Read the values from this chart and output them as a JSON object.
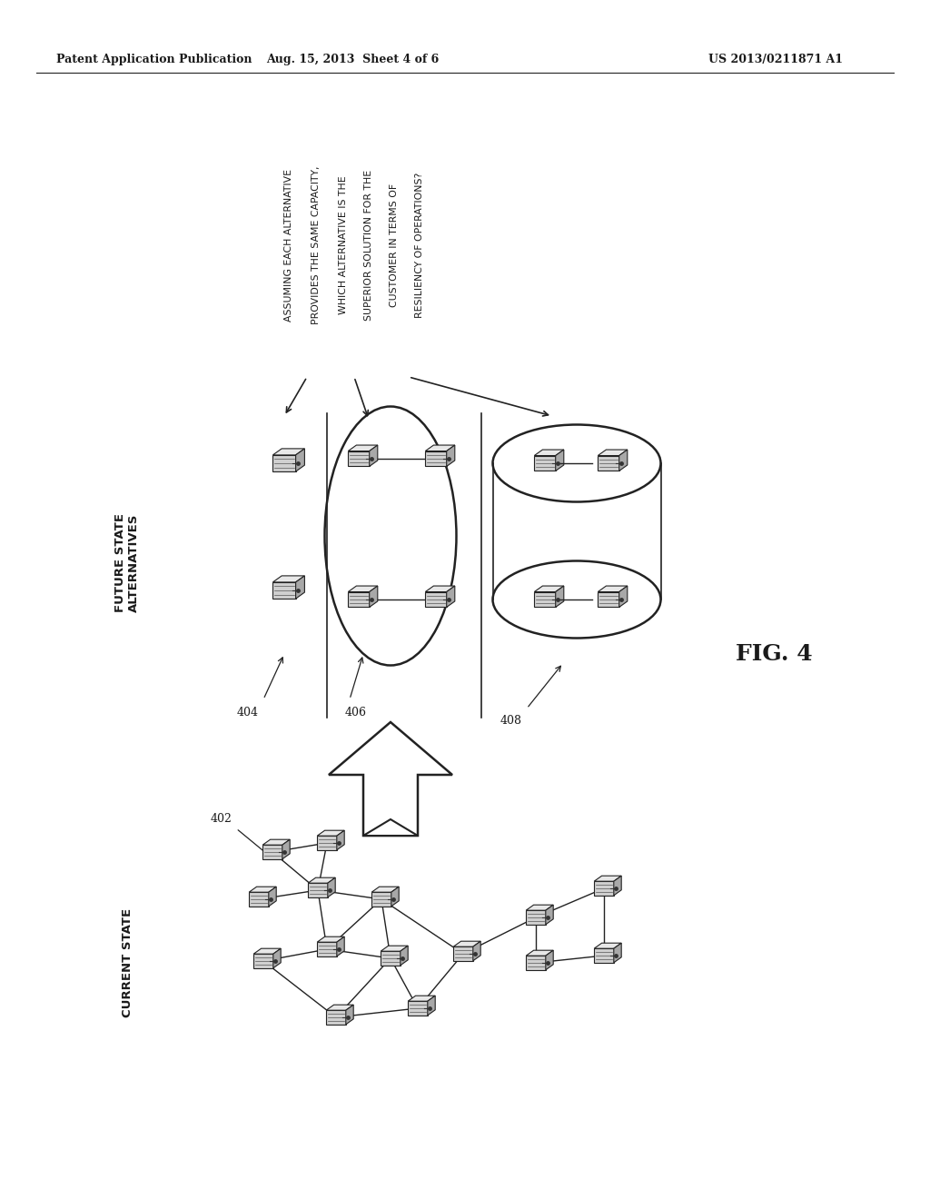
{
  "bg_color": "#ffffff",
  "header_left": "Patent Application Publication",
  "header_center": "Aug. 15, 2013  Sheet 4 of 6",
  "header_right": "US 2013/0211871 A1",
  "question_lines": [
    "ASSUMING EACH ALTERNATIVE",
    "PROVIDES THE SAME CAPACITY,",
    "WHICH ALTERNATIVE IS THE",
    "SUPERIOR SOLUTION FOR THE",
    "CUSTOMER IN TERMS OF",
    "RESILIENCY OF OPERATIONS?"
  ],
  "label_future": "FUTURE STATE\nALTERNATIVES",
  "label_current": "CURRENT STATE",
  "ref_402": "402",
  "ref_404": "404",
  "ref_406": "406",
  "ref_408": "408",
  "fig_label": "FIG. 4",
  "text_color": "#1a1a1a",
  "line_color": "#222222"
}
